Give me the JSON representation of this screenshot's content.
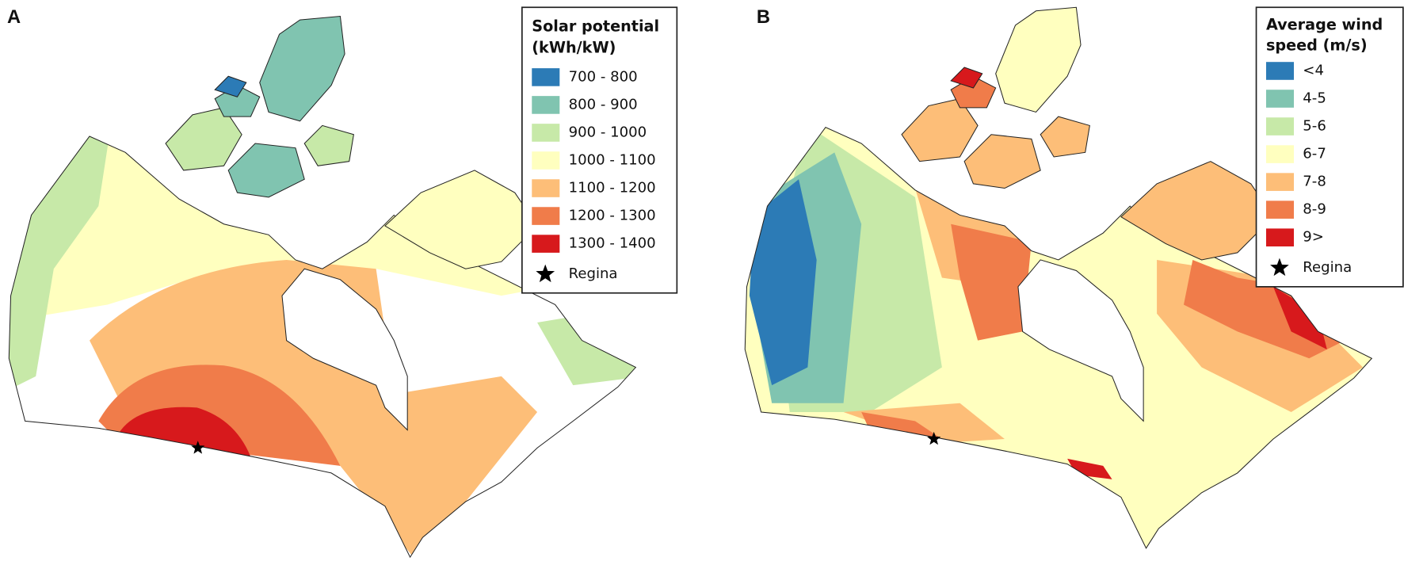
{
  "panels": [
    {
      "label": "A",
      "legend": {
        "title_lines": [
          "Solar potential",
          "(kWh/kW)"
        ],
        "items": [
          {
            "label": "700 - 800",
            "color": "#2c7bb6"
          },
          {
            "label": "800 - 900",
            "color": "#80c4b0"
          },
          {
            "label": "900 - 1000",
            "color": "#c7e9a8"
          },
          {
            "label": "1000 - 1100",
            "color": "#ffffbf"
          },
          {
            "label": "1100 - 1200",
            "color": "#fdbe78"
          },
          {
            "label": "1200 - 1300",
            "color": "#f07c4a"
          },
          {
            "label": "1300 - 1400",
            "color": "#d7191c"
          }
        ],
        "marker_label": "Regina"
      }
    },
    {
      "label": "B",
      "legend": {
        "title_lines": [
          "Average wind",
          "speed (m/s)"
        ],
        "items": [
          {
            "label": "<4",
            "color": "#2c7bb6"
          },
          {
            "label": "4-5",
            "color": "#80c4b0"
          },
          {
            "label": "5-6",
            "color": "#c7e9a8"
          },
          {
            "label": "6-7",
            "color": "#ffffbf"
          },
          {
            "label": "7-8",
            "color": "#fdbe78"
          },
          {
            "label": "8-9",
            "color": "#f07c4a"
          },
          {
            "label": "9>",
            "color": "#d7191c"
          }
        ],
        "marker_label": "Regina"
      }
    }
  ]
}
